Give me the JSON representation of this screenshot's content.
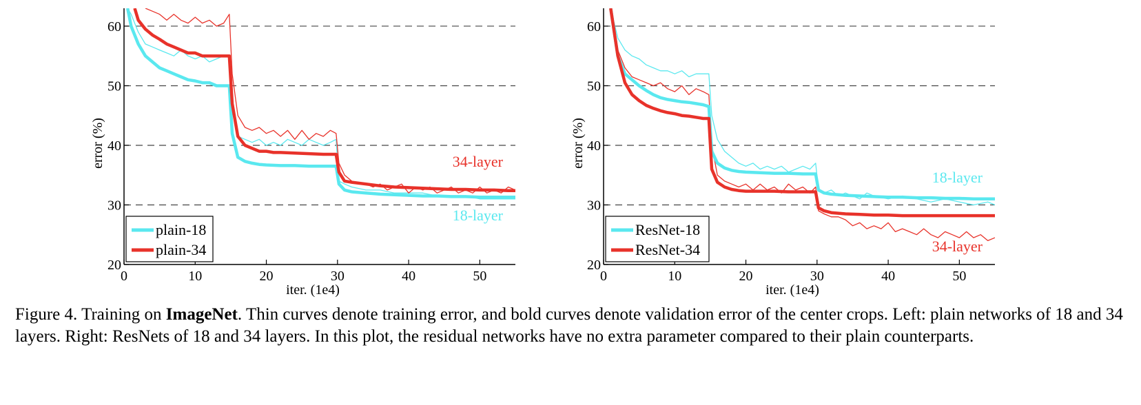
{
  "colors": {
    "cyan": "#5ae8ef",
    "red": "#e8322a",
    "grid": "#444444",
    "axis": "#000000"
  },
  "chart_data": [
    {
      "type": "line",
      "ylabel": "error (%)",
      "xlabel": "iter. (1e4)",
      "xlim": [
        0,
        55
      ],
      "ylim": [
        20,
        63
      ],
      "xticks": [
        "0",
        "10",
        "20",
        "30",
        "40",
        "50"
      ],
      "yticks": [
        "20",
        "30",
        "40",
        "50",
        "60"
      ],
      "grid": "horizontal-dashed",
      "legend_position": "bottom-left",
      "legend": [
        "plain-18",
        "plain-34"
      ],
      "annotations": [
        "34-layer",
        "18-layer"
      ],
      "series": [
        {
          "name": "plain-18 train",
          "style": "thin",
          "color": "cyan",
          "x": [
            0.5,
            1,
            2,
            3,
            4,
            5,
            6,
            7,
            8,
            9,
            10,
            11,
            12,
            13,
            14,
            14.8,
            15.2,
            16,
            17,
            18,
            19,
            20,
            21,
            22,
            23,
            24,
            25,
            26,
            27,
            28,
            29,
            29.8,
            30.2,
            31,
            32,
            34,
            36,
            38,
            40,
            42,
            44,
            46,
            48,
            50,
            52,
            54,
            55
          ],
          "y": [
            63,
            62,
            59,
            57,
            56.5,
            56,
            55.5,
            55,
            56,
            55,
            54.5,
            55,
            54,
            54.5,
            55,
            55,
            48,
            41.5,
            41,
            40.5,
            41,
            40,
            40.5,
            40,
            41,
            40.5,
            40,
            41,
            40.5,
            40,
            40.5,
            41,
            34,
            33.5,
            33,
            32.5,
            32.5,
            32,
            32,
            32,
            31.5,
            31.5,
            31.5,
            31,
            31,
            31,
            31
          ]
        },
        {
          "name": "plain-18 val",
          "style": "bold",
          "color": "cyan",
          "x": [
            0.5,
            1,
            2,
            3,
            4,
            5,
            6,
            7,
            8,
            9,
            10,
            11,
            12,
            13,
            14,
            14.8,
            15.2,
            16,
            17,
            18,
            19,
            20,
            22,
            24,
            26,
            28,
            29.8,
            30.2,
            31,
            32,
            34,
            36,
            38,
            40,
            42,
            44,
            46,
            48,
            50,
            52,
            54,
            55
          ],
          "y": [
            63,
            60,
            57,
            55,
            54,
            53,
            52.5,
            52,
            51.5,
            51,
            50.8,
            50.5,
            50.5,
            50,
            50,
            50,
            42,
            38,
            37.3,
            37,
            36.8,
            36.7,
            36.6,
            36.6,
            36.5,
            36.5,
            36.5,
            33.5,
            32.5,
            32.2,
            32,
            31.8,
            31.7,
            31.6,
            31.5,
            31.5,
            31.4,
            31.4,
            31.3,
            31.3,
            31.3,
            31.3
          ]
        },
        {
          "name": "plain-34 train",
          "style": "thin",
          "color": "red",
          "x": [
            3,
            4,
            5,
            6,
            7,
            8,
            9,
            10,
            11,
            12,
            13,
            14,
            14.8,
            15.2,
            16,
            17,
            18,
            19,
            20,
            21,
            22,
            23,
            24,
            25,
            26,
            27,
            28,
            29,
            29.8,
            30.2,
            31,
            32,
            33,
            34,
            35,
            36,
            37,
            38,
            39,
            40,
            41,
            42,
            43,
            44,
            45,
            46,
            47,
            48,
            49,
            50,
            51,
            52,
            53,
            54,
            55
          ],
          "y": [
            63,
            62.5,
            62,
            61,
            62,
            61,
            60.5,
            61.5,
            60.5,
            61,
            60,
            60.5,
            62,
            52,
            45,
            43,
            42.5,
            43,
            42,
            42.5,
            41.5,
            42.5,
            41,
            42.5,
            41,
            42,
            41.5,
            42.5,
            42,
            37,
            35,
            34,
            33.5,
            33.5,
            33,
            33.5,
            32.5,
            33,
            33.5,
            32,
            33,
            32.5,
            33,
            32,
            32.5,
            33,
            32,
            32.5,
            32,
            33,
            32,
            32.5,
            32,
            33,
            32.5
          ]
        },
        {
          "name": "plain-34 val",
          "style": "bold",
          "color": "red",
          "x": [
            1.5,
            2,
            3,
            4,
            5,
            6,
            7,
            8,
            9,
            10,
            11,
            12,
            13,
            14,
            14.8,
            15.2,
            16,
            17,
            18,
            19,
            20,
            21,
            22,
            24,
            26,
            28,
            29.8,
            30.2,
            31,
            32,
            34,
            36,
            38,
            40,
            42,
            44,
            46,
            48,
            50,
            52,
            54,
            55
          ],
          "y": [
            63,
            61,
            59.5,
            58.5,
            57.8,
            57,
            56.5,
            56,
            55.5,
            55.5,
            55,
            55,
            55,
            55,
            55,
            47,
            41.5,
            40,
            39.5,
            39,
            39,
            38.8,
            38.8,
            38.7,
            38.6,
            38.5,
            38.5,
            35.5,
            34,
            33.8,
            33.5,
            33.2,
            33,
            32.9,
            32.8,
            32.7,
            32.6,
            32.6,
            32.5,
            32.5,
            32.4,
            32.4
          ]
        }
      ]
    },
    {
      "type": "line",
      "ylabel": "error (%)",
      "xlabel": "iter. (1e4)",
      "xlim": [
        0,
        55
      ],
      "ylim": [
        20,
        63
      ],
      "xticks": [
        "0",
        "10",
        "20",
        "30",
        "40",
        "50"
      ],
      "yticks": [
        "20",
        "30",
        "40",
        "50",
        "60"
      ],
      "grid": "horizontal-dashed",
      "legend_position": "bottom-left",
      "legend": [
        "ResNet-18",
        "ResNet-34"
      ],
      "annotations": [
        "18-layer",
        "34-layer"
      ],
      "series": [
        {
          "name": "ResNet-18 train",
          "style": "thin",
          "color": "cyan",
          "x": [
            1,
            2,
            3,
            4,
            5,
            6,
            7,
            8,
            9,
            10,
            11,
            12,
            13,
            14,
            14.8,
            15.2,
            16,
            17,
            18,
            19,
            20,
            21,
            22,
            23,
            24,
            25,
            26,
            27,
            28,
            29,
            29.8,
            30.2,
            31,
            32,
            33,
            34,
            35,
            36,
            37,
            38,
            40,
            42,
            44,
            46,
            48,
            50,
            52,
            54,
            55
          ],
          "y": [
            63,
            58,
            56,
            55,
            54.5,
            53.5,
            53,
            52.5,
            52.5,
            52,
            52.5,
            51.5,
            52,
            52,
            52,
            45,
            41,
            39,
            38,
            37,
            36.5,
            37,
            36,
            36.5,
            36,
            36.5,
            35.5,
            36,
            36.5,
            36,
            37,
            32.5,
            32,
            32.5,
            31.5,
            32,
            31.5,
            31,
            32,
            31.5,
            31,
            31.5,
            31,
            30.5,
            31,
            30.5,
            30,
            30.5,
            30
          ]
        },
        {
          "name": "ResNet-18 val",
          "style": "bold",
          "color": "cyan",
          "x": [
            1,
            2,
            3,
            4,
            5,
            6,
            7,
            8,
            9,
            10,
            11,
            12,
            13,
            14,
            14.8,
            15.2,
            16,
            17,
            18,
            19,
            20,
            22,
            24,
            26,
            28,
            29.8,
            30.2,
            31,
            32,
            34,
            36,
            38,
            40,
            42,
            44,
            46,
            48,
            50,
            52,
            54,
            55
          ],
          "y": [
            63,
            55,
            52,
            51,
            50,
            49.2,
            48.5,
            48,
            47.7,
            47.5,
            47.3,
            47.2,
            47,
            46.8,
            46.5,
            39,
            37,
            36.2,
            35.8,
            35.6,
            35.5,
            35.4,
            35.3,
            35.3,
            35.2,
            35.2,
            32.5,
            32,
            31.8,
            31.6,
            31.5,
            31.4,
            31.3,
            31.3,
            31.2,
            31.2,
            31.1,
            31.1,
            31,
            31,
            31
          ]
        },
        {
          "name": "ResNet-34 train",
          "style": "thin",
          "color": "red",
          "x": [
            1,
            2,
            3,
            4,
            5,
            6,
            7,
            8,
            9,
            10,
            11,
            12,
            13,
            14,
            14.8,
            15.2,
            16,
            17,
            18,
            19,
            20,
            21,
            22,
            23,
            24,
            25,
            26,
            27,
            28,
            29,
            29.8,
            30.2,
            31,
            32,
            33,
            34,
            35,
            36,
            37,
            38,
            39,
            40,
            41,
            42,
            43,
            44,
            45,
            46,
            47,
            48,
            49,
            50,
            51,
            52,
            53,
            54,
            55
          ],
          "y": [
            63,
            56,
            53,
            51.5,
            51,
            50.5,
            50,
            50.5,
            49.5,
            49,
            50,
            48.5,
            49.5,
            49,
            48.5,
            40,
            35,
            34,
            33.5,
            33,
            33.5,
            32.5,
            33.5,
            32.5,
            33,
            32,
            33.5,
            32.5,
            33,
            32,
            33,
            29,
            28.5,
            28,
            28,
            27.5,
            26.5,
            27,
            26,
            26.5,
            26,
            27,
            25.5,
            26,
            25.5,
            25,
            26,
            25,
            24.5,
            25.5,
            25,
            24.5,
            25.5,
            24.5,
            25,
            24,
            24.5
          ]
        },
        {
          "name": "ResNet-34 val",
          "style": "bold",
          "color": "red",
          "x": [
            1,
            2,
            3,
            4,
            5,
            6,
            7,
            8,
            9,
            10,
            11,
            12,
            13,
            14,
            14.8,
            15.2,
            16,
            17,
            18,
            19,
            20,
            22,
            24,
            26,
            28,
            29.8,
            30.2,
            31,
            32,
            34,
            36,
            38,
            40,
            42,
            44,
            46,
            48,
            50,
            52,
            54,
            55
          ],
          "y": [
            63,
            55,
            50.5,
            48.5,
            47.5,
            46.7,
            46.2,
            45.8,
            45.5,
            45.3,
            45,
            44.9,
            44.7,
            44.5,
            44.5,
            36,
            33.8,
            33,
            32.6,
            32.4,
            32.3,
            32.3,
            32.3,
            32.2,
            32.2,
            32.2,
            29.5,
            29,
            28.7,
            28.5,
            28.4,
            28.3,
            28.3,
            28.2,
            28.2,
            28.2,
            28.2,
            28.2,
            28.2,
            28.2,
            28.2
          ]
        }
      ]
    }
  ],
  "caption": {
    "prefix": "Figure 4. Training on ",
    "bold": "ImageNet",
    "suffix": ". Thin curves denote training error, and bold curves denote validation error of the center crops. Left: plain networks of 18 and 34 layers. Right: ResNets of 18 and 34 layers. In this plot, the residual networks have no extra parameter compared to their plain counterparts."
  }
}
